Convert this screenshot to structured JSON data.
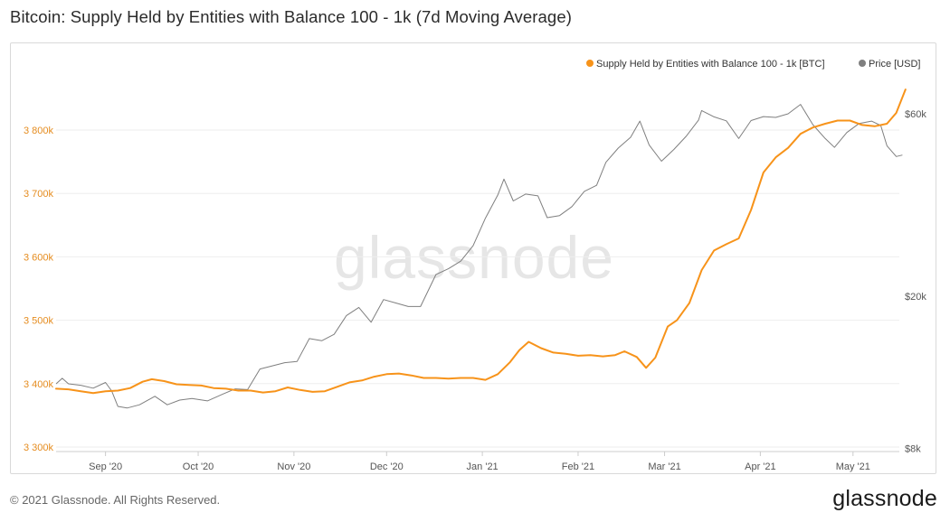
{
  "page": {
    "title": "Bitcoin: Supply Held by Entities with Balance 100 - 1k (7d Moving Average)",
    "watermark": "glassnode",
    "footer_copyright": "© 2021 Glassnode. All Rights Reserved.",
    "footer_logo": "glassnode"
  },
  "colors": {
    "supply": "#f7931a",
    "price": "#7f7f7f",
    "left_axis_text": "#e58c1f",
    "right_axis_text": "#555555",
    "grid": "#eeeeee",
    "watermark": "#e6e6e6"
  },
  "chart_data": {
    "type": "line",
    "title": "Bitcoin: Supply Held by Entities with Balance 100 - 1k (7d Moving Average)",
    "x_range": [
      "2020-08-16",
      "2021-05-16"
    ],
    "x_ticks": [
      {
        "date": "2020-09-01",
        "label": "Sep '20"
      },
      {
        "date": "2020-10-01",
        "label": "Oct '20"
      },
      {
        "date": "2020-11-01",
        "label": "Nov '20"
      },
      {
        "date": "2020-12-01",
        "label": "Dec '20"
      },
      {
        "date": "2021-01-01",
        "label": "Jan '21"
      },
      {
        "date": "2021-02-01",
        "label": "Feb '21"
      },
      {
        "date": "2021-03-01",
        "label": "Mar '21"
      },
      {
        "date": "2021-04-01",
        "label": "Apr '21"
      },
      {
        "date": "2021-05-01",
        "label": "May '21"
      }
    ],
    "y_left": {
      "scale": "linear",
      "ylim": [
        3300000,
        3800000
      ],
      "ticks": [
        {
          "value": 3300000,
          "label": "3 300k"
        },
        {
          "value": 3400000,
          "label": "3 400k"
        },
        {
          "value": 3500000,
          "label": "3 500k"
        },
        {
          "value": 3600000,
          "label": "3 600k"
        },
        {
          "value": 3700000,
          "label": "3 700k"
        },
        {
          "value": 3800000,
          "label": "3 800k"
        }
      ]
    },
    "y_right": {
      "scale": "log",
      "ticks": [
        {
          "value": 8000,
          "label": "$8k"
        },
        {
          "value": 20000,
          "label": "$20k"
        },
        {
          "value": 60000,
          "label": "$60k"
        }
      ]
    },
    "legend_position": "top-right",
    "grid": true,
    "series": [
      {
        "name": "Supply Held by Entities with Balance 100 - 1k [BTC]",
        "axis": "left",
        "points": [
          [
            "2020-08-16",
            3392000
          ],
          [
            "2020-08-20",
            3391000
          ],
          [
            "2020-08-24",
            3388000
          ],
          [
            "2020-08-28",
            3385000
          ],
          [
            "2020-09-01",
            3388000
          ],
          [
            "2020-09-05",
            3389000
          ],
          [
            "2020-09-09",
            3393000
          ],
          [
            "2020-09-13",
            3403000
          ],
          [
            "2020-09-16",
            3407000
          ],
          [
            "2020-09-20",
            3404000
          ],
          [
            "2020-09-24",
            3399000
          ],
          [
            "2020-09-28",
            3398000
          ],
          [
            "2020-10-02",
            3397000
          ],
          [
            "2020-10-06",
            3393000
          ],
          [
            "2020-10-10",
            3392000
          ],
          [
            "2020-10-14",
            3389000
          ],
          [
            "2020-10-18",
            3389000
          ],
          [
            "2020-10-22",
            3386000
          ],
          [
            "2020-10-26",
            3388000
          ],
          [
            "2020-10-30",
            3394000
          ],
          [
            "2020-11-03",
            3390000
          ],
          [
            "2020-11-07",
            3387000
          ],
          [
            "2020-11-11",
            3388000
          ],
          [
            "2020-11-15",
            3395000
          ],
          [
            "2020-11-19",
            3402000
          ],
          [
            "2020-11-23",
            3405000
          ],
          [
            "2020-11-27",
            3411000
          ],
          [
            "2020-12-01",
            3415000
          ],
          [
            "2020-12-05",
            3416000
          ],
          [
            "2020-12-09",
            3413000
          ],
          [
            "2020-12-13",
            3409000
          ],
          [
            "2020-12-17",
            3409000
          ],
          [
            "2020-12-21",
            3408000
          ],
          [
            "2020-12-25",
            3409000
          ],
          [
            "2020-12-29",
            3409000
          ],
          [
            "2021-01-02",
            3406000
          ],
          [
            "2021-01-06",
            3415000
          ],
          [
            "2021-01-10",
            3434000
          ],
          [
            "2021-01-13",
            3453000
          ],
          [
            "2021-01-16",
            3466000
          ],
          [
            "2021-01-20",
            3456000
          ],
          [
            "2021-01-24",
            3449000
          ],
          [
            "2021-01-28",
            3447000
          ],
          [
            "2021-02-01",
            3444000
          ],
          [
            "2021-02-05",
            3445000
          ],
          [
            "2021-02-09",
            3443000
          ],
          [
            "2021-02-13",
            3445000
          ],
          [
            "2021-02-16",
            3451000
          ],
          [
            "2021-02-20",
            3442000
          ],
          [
            "2021-02-23",
            3425000
          ],
          [
            "2021-02-26",
            3441000
          ],
          [
            "2021-03-02",
            3490000
          ],
          [
            "2021-03-05",
            3500000
          ],
          [
            "2021-03-09",
            3527000
          ],
          [
            "2021-03-13",
            3579000
          ],
          [
            "2021-03-17",
            3610000
          ],
          [
            "2021-03-21",
            3620000
          ],
          [
            "2021-03-25",
            3629000
          ],
          [
            "2021-03-29",
            3674000
          ],
          [
            "2021-04-02",
            3733000
          ],
          [
            "2021-04-06",
            3757000
          ],
          [
            "2021-04-10",
            3772000
          ],
          [
            "2021-04-14",
            3794000
          ],
          [
            "2021-04-18",
            3804000
          ],
          [
            "2021-04-22",
            3810000
          ],
          [
            "2021-04-26",
            3815000
          ],
          [
            "2021-04-30",
            3815000
          ],
          [
            "2021-05-04",
            3808000
          ],
          [
            "2021-05-08",
            3806000
          ],
          [
            "2021-05-12",
            3810000
          ],
          [
            "2021-05-15",
            3827000
          ],
          [
            "2021-05-18",
            3864000
          ]
        ]
      },
      {
        "name": "Price [USD]",
        "axis": "right",
        "points": [
          [
            "2020-08-16",
            11800
          ],
          [
            "2020-08-18",
            12200
          ],
          [
            "2020-08-20",
            11800
          ],
          [
            "2020-08-24",
            11700
          ],
          [
            "2020-08-28",
            11500
          ],
          [
            "2020-09-01",
            11900
          ],
          [
            "2020-09-03",
            11300
          ],
          [
            "2020-09-05",
            10300
          ],
          [
            "2020-09-08",
            10200
          ],
          [
            "2020-09-12",
            10400
          ],
          [
            "2020-09-17",
            10950
          ],
          [
            "2020-09-21",
            10400
          ],
          [
            "2020-09-25",
            10700
          ],
          [
            "2020-09-29",
            10800
          ],
          [
            "2020-10-04",
            10650
          ],
          [
            "2020-10-09",
            11100
          ],
          [
            "2020-10-13",
            11450
          ],
          [
            "2020-10-17",
            11400
          ],
          [
            "2020-10-21",
            12900
          ],
          [
            "2020-10-25",
            13150
          ],
          [
            "2020-10-29",
            13400
          ],
          [
            "2020-11-02",
            13500
          ],
          [
            "2020-11-06",
            15500
          ],
          [
            "2020-11-10",
            15300
          ],
          [
            "2020-11-14",
            15900
          ],
          [
            "2020-11-18",
            17800
          ],
          [
            "2020-11-22",
            18700
          ],
          [
            "2020-11-26",
            17100
          ],
          [
            "2020-11-30",
            19600
          ],
          [
            "2020-12-04",
            19200
          ],
          [
            "2020-12-08",
            18800
          ],
          [
            "2020-12-12",
            18800
          ],
          [
            "2020-12-17",
            22800
          ],
          [
            "2020-12-21",
            23600
          ],
          [
            "2020-12-25",
            24700
          ],
          [
            "2020-12-29",
            27100
          ],
          [
            "2021-01-02",
            32000
          ],
          [
            "2021-01-06",
            36800
          ],
          [
            "2021-01-08",
            40500
          ],
          [
            "2021-01-11",
            35500
          ],
          [
            "2021-01-15",
            37000
          ],
          [
            "2021-01-19",
            36600
          ],
          [
            "2021-01-22",
            32100
          ],
          [
            "2021-01-26",
            32500
          ],
          [
            "2021-01-30",
            34300
          ],
          [
            "2021-02-03",
            37600
          ],
          [
            "2021-02-07",
            39000
          ],
          [
            "2021-02-10",
            44800
          ],
          [
            "2021-02-14",
            48800
          ],
          [
            "2021-02-18",
            52100
          ],
          [
            "2021-02-21",
            57400
          ],
          [
            "2021-02-24",
            49700
          ],
          [
            "2021-02-28",
            45100
          ],
          [
            "2021-03-04",
            48400
          ],
          [
            "2021-03-08",
            52400
          ],
          [
            "2021-03-12",
            57800
          ],
          [
            "2021-03-13",
            61200
          ],
          [
            "2021-03-17",
            58900
          ],
          [
            "2021-03-21",
            57500
          ],
          [
            "2021-03-25",
            51700
          ],
          [
            "2021-03-29",
            57600
          ],
          [
            "2021-04-02",
            59000
          ],
          [
            "2021-04-06",
            58700
          ],
          [
            "2021-04-10",
            60000
          ],
          [
            "2021-04-14",
            63500
          ],
          [
            "2021-04-18",
            56200
          ],
          [
            "2021-04-22",
            51700
          ],
          [
            "2021-04-25",
            49000
          ],
          [
            "2021-04-29",
            53600
          ],
          [
            "2021-05-03",
            56600
          ],
          [
            "2021-05-07",
            57400
          ],
          [
            "2021-05-10",
            55900
          ],
          [
            "2021-05-12",
            49500
          ],
          [
            "2021-05-15",
            46400
          ],
          [
            "2021-05-17",
            46800
          ]
        ]
      }
    ]
  }
}
